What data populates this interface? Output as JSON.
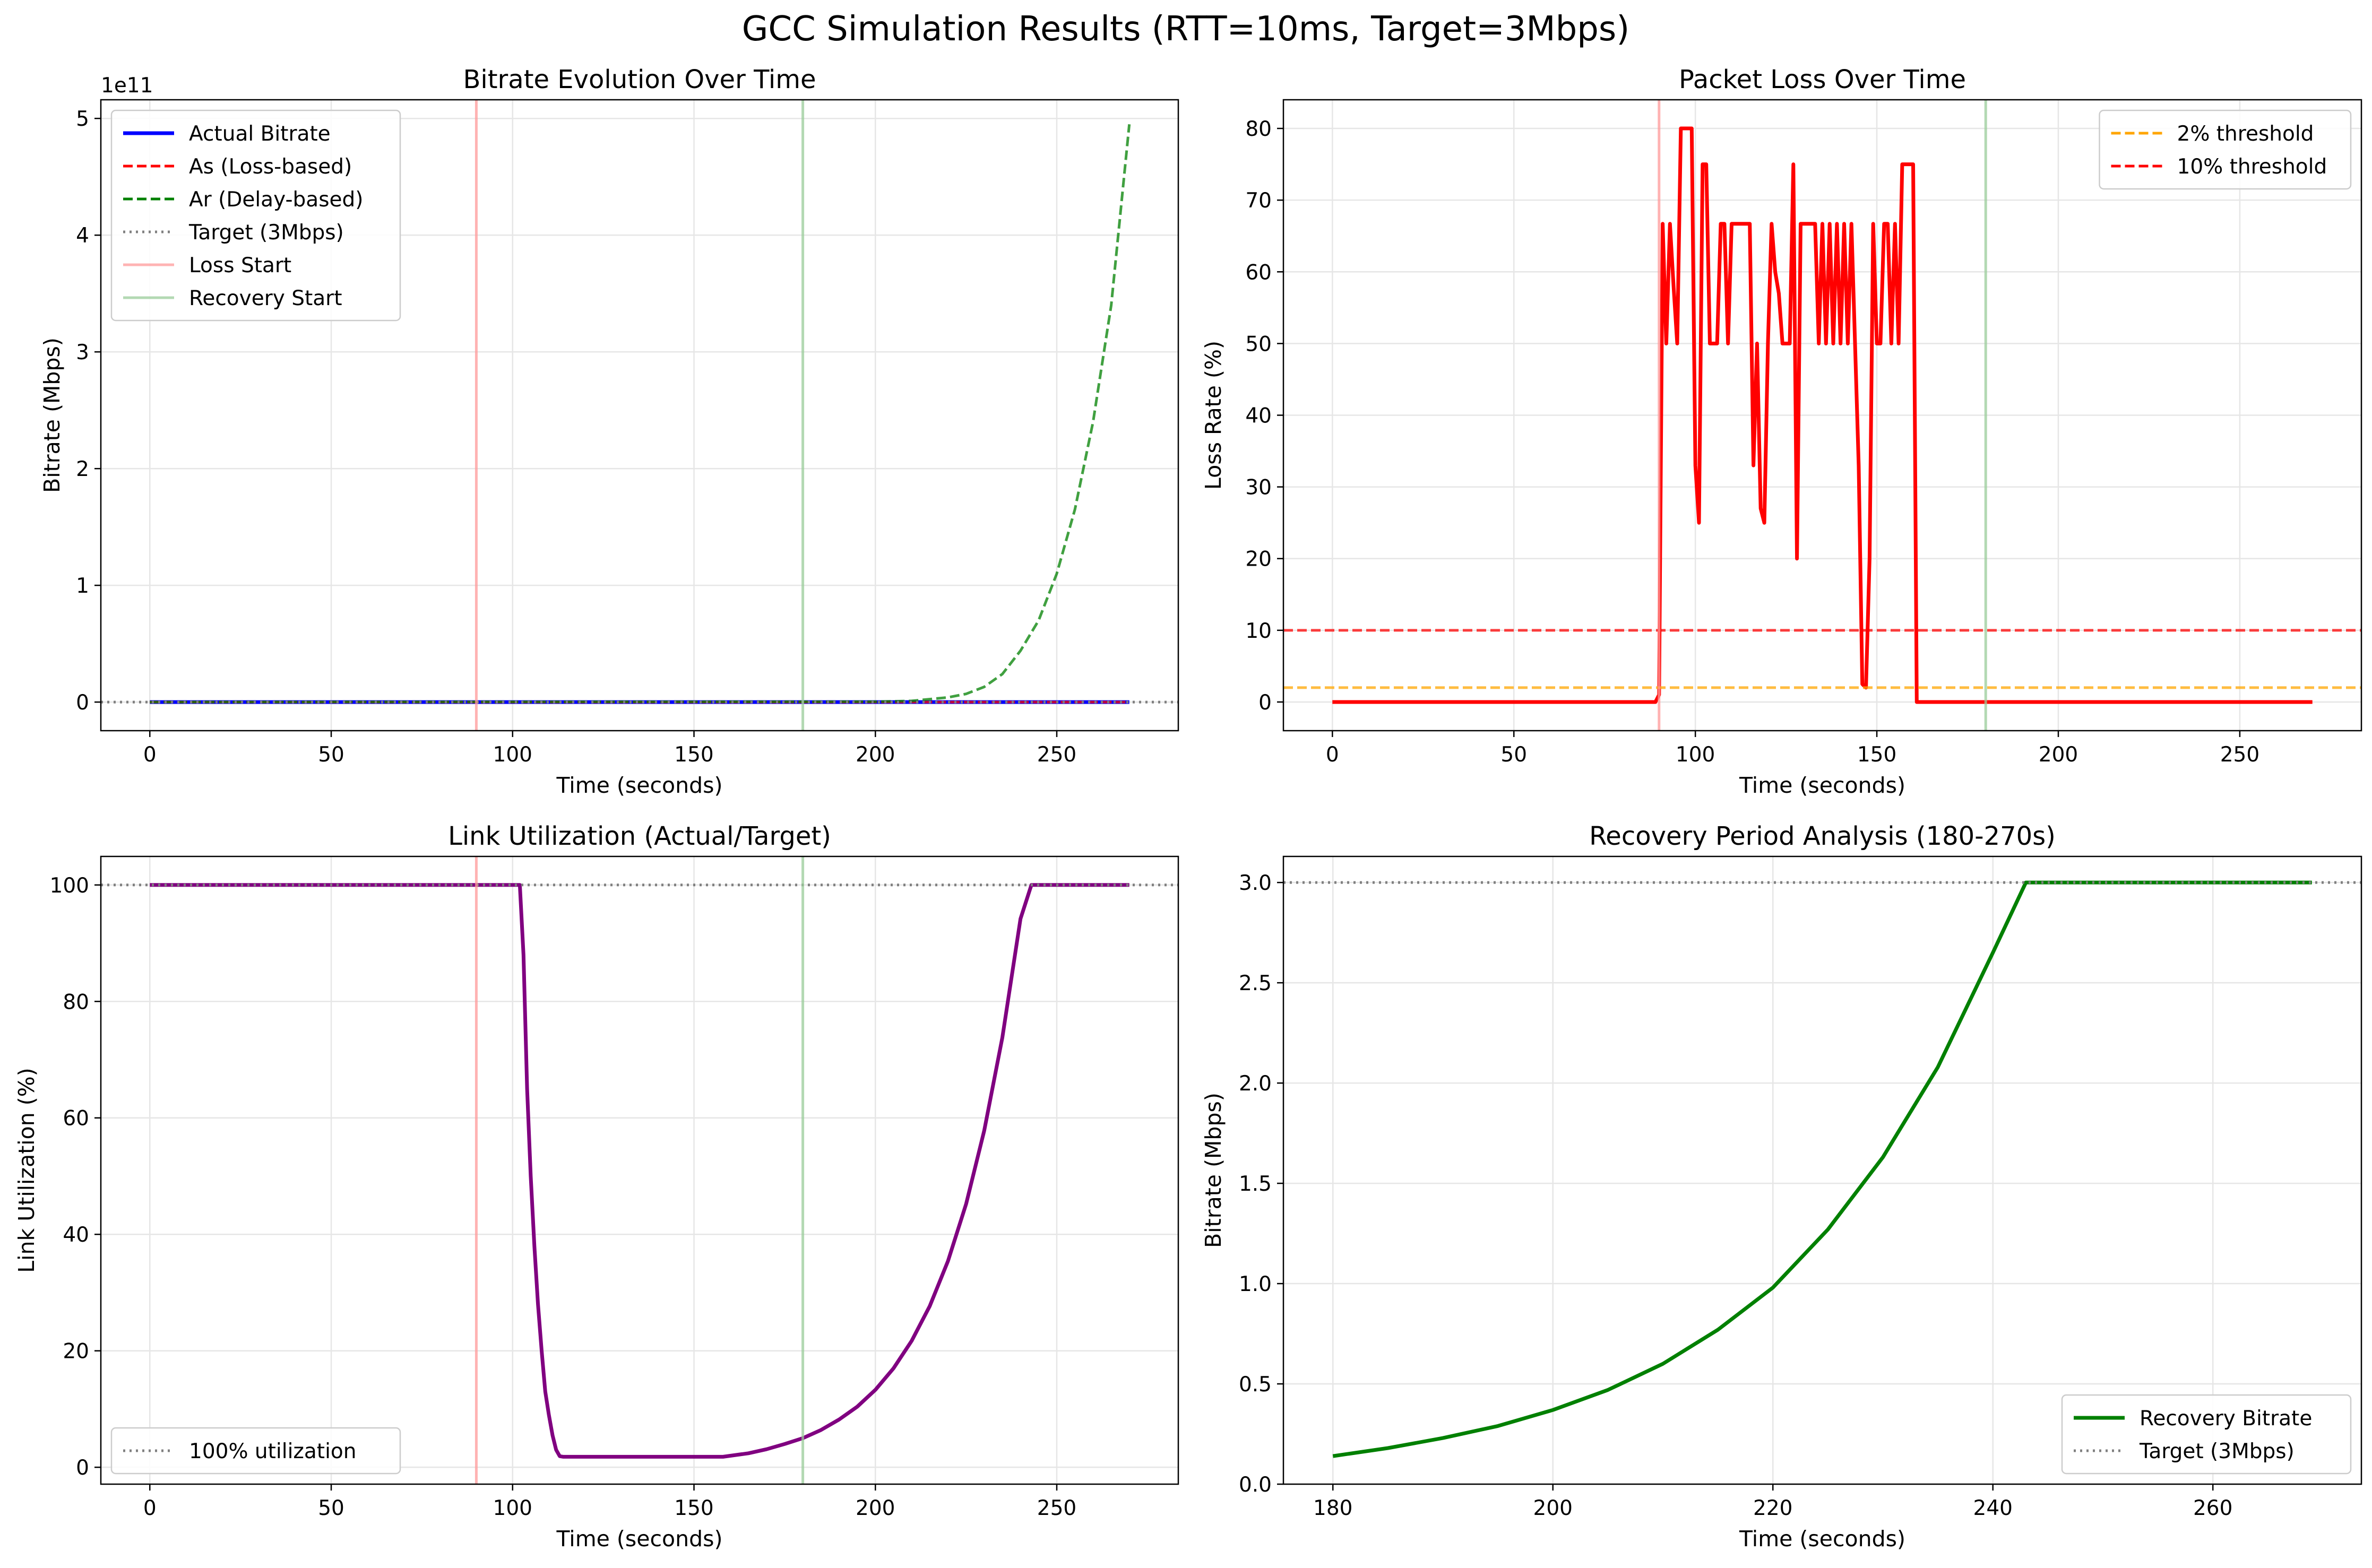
{
  "figure": {
    "suptitle": "GCC Simulation Results (RTT=10ms, Target=3Mbps)"
  },
  "colors": {
    "blue": "#0000ff",
    "red": "#ff0000",
    "green": "#008000",
    "purple": "#800080",
    "orange": "#ffa500",
    "gray": "#808080",
    "loss_start_line": "#ff9999",
    "recovery_start_line": "#99cc99"
  },
  "chart_data": [
    {
      "type": "line",
      "title": "Bitrate Evolution Over Time",
      "xlabel": "Time (seconds)",
      "ylabel": "Bitrate (Mbps)",
      "y_offset_text": "1e11",
      "xlim": [
        -13.5,
        283.5
      ],
      "ylim": [
        -0.245,
        5.16
      ],
      "xticks": [
        0,
        50,
        100,
        150,
        200,
        250
      ],
      "xtick_labels": [
        "0",
        "50",
        "100",
        "150",
        "200",
        "250"
      ],
      "yticks": [
        0,
        1,
        2,
        3,
        4,
        5
      ],
      "ytick_labels": [
        "0",
        "1",
        "2",
        "3",
        "4",
        "5"
      ],
      "grid": true,
      "legend_position": "upper left",
      "series": [
        {
          "name": "Actual Bitrate",
          "style": "solid",
          "color": "#0000ff",
          "x": [
            0,
            270
          ],
          "y": [
            0,
            0
          ]
        },
        {
          "name": "As (Loss-based)",
          "style": "dashed",
          "color": "#ff0000",
          "x": [
            0,
            270
          ],
          "y": [
            0,
            0
          ]
        },
        {
          "name": "Ar (Delay-based)",
          "style": "dashed",
          "color": "#008000",
          "x": [
            0,
            200,
            210,
            220,
            225,
            230,
            235,
            240,
            245,
            250,
            255,
            260,
            265,
            270
          ],
          "y": [
            0,
            0.003,
            0.01,
            0.04,
            0.07,
            0.13,
            0.24,
            0.44,
            0.7,
            1.1,
            1.65,
            2.4,
            3.4,
            4.95
          ]
        },
        {
          "name": "Target (3Mbps)",
          "style": "dotted",
          "color": "#808080",
          "hline": 0
        },
        {
          "name": "Loss Start",
          "style": "vline",
          "color": "#ff9999",
          "vline": 90
        },
        {
          "name": "Recovery Start",
          "style": "vline",
          "color": "#99cc99",
          "vline": 180
        }
      ]
    },
    {
      "type": "line",
      "title": "Packet Loss Over Time",
      "xlabel": "Time (seconds)",
      "ylabel": "Loss Rate (%)",
      "xlim": [
        -13.5,
        283.5
      ],
      "ylim": [
        -4,
        84
      ],
      "xticks": [
        0,
        50,
        100,
        150,
        200,
        250
      ],
      "xtick_labels": [
        "0",
        "50",
        "100",
        "150",
        "200",
        "250"
      ],
      "yticks": [
        0,
        10,
        20,
        30,
        40,
        50,
        60,
        70,
        80
      ],
      "ytick_labels": [
        "0",
        "10",
        "20",
        "30",
        "40",
        "50",
        "60",
        "70",
        "80"
      ],
      "grid": true,
      "legend_position": "upper right",
      "series": [
        {
          "name": "",
          "style": "solid",
          "color": "#ff0000",
          "x": [
            0,
            89,
            90,
            91,
            92,
            93,
            94,
            95,
            96,
            97,
            98,
            99,
            100,
            101,
            102,
            103,
            104,
            105,
            106,
            107,
            108,
            109,
            110,
            111,
            112,
            113,
            114,
            115,
            116,
            117,
            118,
            119,
            120,
            121,
            122,
            123,
            124,
            125,
            126,
            127,
            128,
            129,
            130,
            131,
            132,
            133,
            134,
            135,
            136,
            137,
            138,
            139,
            140,
            141,
            142,
            143,
            144,
            145,
            146,
            147,
            148,
            149,
            150,
            151,
            152,
            153,
            154,
            155,
            156,
            157,
            158,
            159,
            160,
            161,
            200,
            270
          ],
          "y": [
            0,
            0,
            1,
            66.7,
            50,
            66.7,
            58,
            50,
            80,
            80,
            80,
            80,
            33,
            25,
            75,
            75,
            50,
            50,
            50,
            66.7,
            66.7,
            50,
            66.7,
            66.7,
            66.7,
            66.7,
            66.7,
            66.7,
            33,
            50,
            27,
            25,
            50,
            66.7,
            60,
            57,
            50,
            50,
            50,
            75,
            20,
            66.7,
            66.7,
            66.7,
            66.7,
            66.7,
            50,
            66.7,
            50,
            66.7,
            50,
            66.7,
            50,
            66.7,
            50,
            66.7,
            50,
            33,
            2.5,
            2,
            20,
            66.7,
            50,
            50,
            66.7,
            66.7,
            50,
            66.7,
            50,
            75,
            75,
            75,
            75,
            0,
            0,
            0
          ]
        },
        {
          "name": "2% threshold",
          "style": "dashed",
          "color": "#ffa500",
          "hline": 2
        },
        {
          "name": "10% threshold",
          "style": "dashed",
          "color": "#ff0000",
          "hline": 10
        },
        {
          "name": "",
          "style": "vline",
          "color": "#ff9999",
          "vline": 90
        },
        {
          "name": "",
          "style": "vline",
          "color": "#99cc99",
          "vline": 180
        }
      ]
    },
    {
      "type": "line",
      "title": "Link Utilization (Actual/Target)",
      "xlabel": "Time (seconds)",
      "ylabel": "Link Utilization (%)",
      "xlim": [
        -13.5,
        283.5
      ],
      "ylim": [
        -2.9,
        104.9
      ],
      "xticks": [
        0,
        50,
        100,
        150,
        200,
        250
      ],
      "xtick_labels": [
        "0",
        "50",
        "100",
        "150",
        "200",
        "250"
      ],
      "yticks": [
        0,
        20,
        40,
        60,
        80,
        100
      ],
      "ytick_labels": [
        "0",
        "20",
        "40",
        "60",
        "80",
        "100"
      ],
      "grid": true,
      "legend_position": "lower left",
      "series": [
        {
          "name": "",
          "style": "solid",
          "color": "#800080",
          "x": [
            0,
            101,
            102,
            103,
            104,
            105,
            106,
            107,
            108,
            109,
            110,
            111,
            112,
            113,
            114,
            158,
            165,
            170,
            175,
            180,
            185,
            190,
            195,
            200,
            205,
            210,
            215,
            220,
            225,
            230,
            235,
            240,
            243,
            270
          ],
          "y": [
            100,
            100,
            100,
            88,
            65,
            50,
            38,
            28,
            20,
            13,
            9,
            5.5,
            3,
            1.9,
            1.8,
            1.8,
            2.4,
            3.1,
            4.0,
            5.0,
            6.4,
            8.2,
            10.4,
            13.3,
            17.0,
            21.7,
            27.7,
            35.4,
            45.2,
            57.8,
            73.8,
            94.2,
            100,
            100
          ]
        },
        {
          "name": "100% utilization",
          "style": "dotted",
          "color": "#808080",
          "hline": 100
        },
        {
          "name": "",
          "style": "vline",
          "color": "#ff9999",
          "vline": 90
        },
        {
          "name": "",
          "style": "vline",
          "color": "#99cc99",
          "vline": 180
        }
      ]
    },
    {
      "type": "line",
      "title": "Recovery Period Analysis (180-270s)",
      "xlabel": "Time (seconds)",
      "ylabel": "Bitrate (Mbps)",
      "xlim": [
        175.5,
        273.5
      ],
      "ylim": [
        0,
        3.13
      ],
      "xticks": [
        180,
        200,
        220,
        240,
        260
      ],
      "xtick_labels": [
        "180",
        "200",
        "220",
        "240",
        "260"
      ],
      "yticks": [
        0,
        0.5,
        1.0,
        1.5,
        2.0,
        2.5,
        3.0
      ],
      "ytick_labels": [
        "0.0",
        "0.5",
        "1.0",
        "1.5",
        "2.0",
        "2.5",
        "3.0"
      ],
      "grid": true,
      "legend_position": "lower right",
      "series": [
        {
          "name": "Recovery Bitrate",
          "style": "solid",
          "color": "#008000",
          "x": [
            180,
            185,
            190,
            195,
            200,
            205,
            210,
            215,
            220,
            225,
            230,
            235,
            240,
            243,
            269
          ],
          "y": [
            0.14,
            0.18,
            0.23,
            0.29,
            0.37,
            0.47,
            0.6,
            0.77,
            0.98,
            1.27,
            1.63,
            2.08,
            2.65,
            3.0,
            3.0
          ]
        },
        {
          "name": "Target (3Mbps)",
          "style": "dotted",
          "color": "#808080",
          "hline": 3.0
        }
      ]
    }
  ]
}
